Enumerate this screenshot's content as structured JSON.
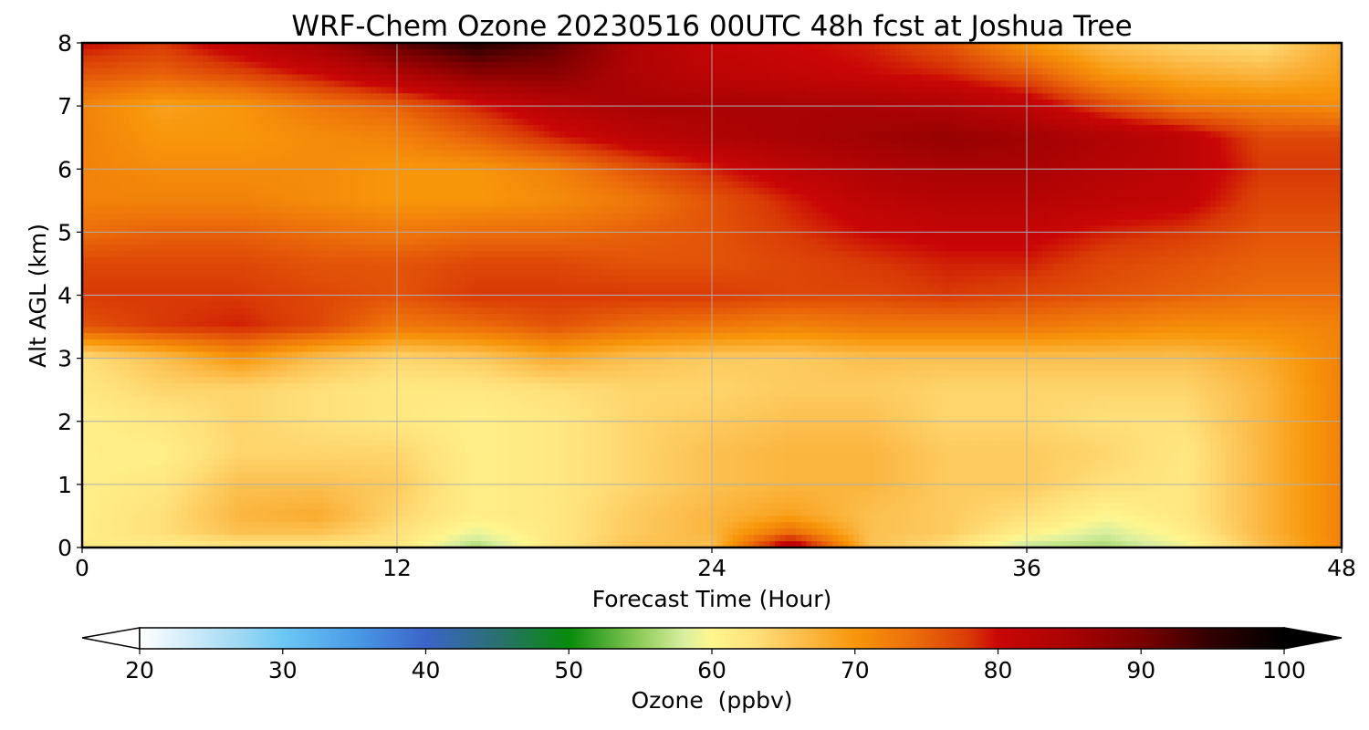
{
  "chart_data": {
    "type": "heatmap",
    "title": "WRF-Chem Ozone  20230516 00UTC 48h fcst at Joshua Tree",
    "xlabel": "Forecast Time (Hour)",
    "ylabel": "Alt AGL (km)",
    "xlim": [
      0,
      48
    ],
    "ylim": [
      0,
      8
    ],
    "x_ticks": [
      "0",
      "12",
      "24",
      "36",
      "48"
    ],
    "y_ticks": [
      "0",
      "1",
      "2",
      "3",
      "4",
      "5",
      "6",
      "7",
      "8"
    ],
    "grid": true,
    "colorbar": {
      "label": "Ozone  (ppbv)",
      "range": [
        20,
        100
      ],
      "ticks": [
        "20",
        "30",
        "40",
        "50",
        "60",
        "70",
        "80",
        "90",
        "100"
      ],
      "extend": "both",
      "stops": [
        {
          "value": 20,
          "color": "#ffffff"
        },
        {
          "value": 27,
          "color": "#9fd8f3"
        },
        {
          "value": 30,
          "color": "#6cc8f5"
        },
        {
          "value": 35,
          "color": "#4a9be6"
        },
        {
          "value": 40,
          "color": "#3b64c8"
        },
        {
          "value": 45,
          "color": "#2a7070"
        },
        {
          "value": 50,
          "color": "#078a0a"
        },
        {
          "value": 55,
          "color": "#8fcc5a"
        },
        {
          "value": 58,
          "color": "#d8efa0"
        },
        {
          "value": 60,
          "color": "#fff68f"
        },
        {
          "value": 63,
          "color": "#ffe07a"
        },
        {
          "value": 66,
          "color": "#fcc050"
        },
        {
          "value": 70,
          "color": "#f8960a"
        },
        {
          "value": 74,
          "color": "#ec6e0a"
        },
        {
          "value": 78,
          "color": "#d93a06"
        },
        {
          "value": 80,
          "color": "#c90606"
        },
        {
          "value": 85,
          "color": "#a90303"
        },
        {
          "value": 90,
          "color": "#7a0000"
        },
        {
          "value": 95,
          "color": "#300000"
        },
        {
          "value": 100,
          "color": "#000000"
        }
      ]
    },
    "times_hr": [
      0,
      3,
      6,
      9,
      12,
      15,
      18,
      21,
      24,
      27,
      30,
      33,
      36,
      39,
      42,
      45,
      48
    ],
    "altitudes_km": [
      0,
      0.25,
      0.5,
      1,
      1.5,
      2,
      2.5,
      3,
      3.5,
      4,
      4.5,
      5,
      5.5,
      6,
      6.5,
      7,
      7.5,
      8
    ],
    "values_ppbv": [
      [
        62,
        61,
        62,
        62,
        62,
        56,
        62,
        66,
        66,
        84,
        66,
        63,
        57,
        56,
        59,
        66,
        72
      ],
      [
        61,
        63,
        66,
        66,
        63,
        59,
        62,
        65,
        67,
        74,
        66,
        65,
        61,
        58,
        61,
        67,
        72
      ],
      [
        61,
        63,
        67,
        68,
        64,
        61,
        62,
        65,
        67,
        69,
        66,
        65,
        63,
        60,
        62,
        67,
        72
      ],
      [
        61,
        62,
        66,
        66,
        65,
        61,
        62,
        64,
        66,
        67,
        67,
        65,
        65,
        63,
        62,
        67,
        72
      ],
      [
        61,
        61,
        64,
        64,
        64,
        61,
        62,
        64,
        66,
        67,
        67,
        65,
        65,
        64,
        62,
        67,
        72
      ],
      [
        61,
        62,
        64,
        63,
        62,
        61,
        62,
        64,
        65,
        66,
        66,
        64,
        64,
        63,
        63,
        67,
        72
      ],
      [
        62,
        64,
        64,
        63,
        62,
        62,
        63,
        64,
        64,
        65,
        65,
        64,
        64,
        64,
        64,
        67,
        72
      ],
      [
        63,
        66,
        70,
        66,
        64,
        65,
        68,
        66,
        65,
        65,
        66,
        66,
        66,
        66,
        66,
        68,
        72
      ],
      [
        76,
        78,
        79,
        77,
        73,
        74,
        76,
        74,
        73,
        72,
        73,
        73,
        73,
        72,
        71,
        71,
        72
      ],
      [
        78,
        78,
        78,
        77,
        76,
        78,
        78,
        78,
        78,
        77,
        77,
        78,
        77,
        76,
        75,
        74,
        74
      ],
      [
        77,
        77,
        77,
        76,
        76,
        77,
        77,
        76,
        76,
        77,
        78,
        79,
        79,
        77,
        76,
        75,
        75
      ],
      [
        74,
        75,
        75,
        74,
        73,
        74,
        74,
        75,
        76,
        78,
        80,
        81,
        81,
        79,
        78,
        76,
        76
      ],
      [
        72,
        72,
        72,
        71,
        70,
        70,
        71,
        73,
        76,
        79,
        82,
        83,
        83,
        82,
        81,
        77,
        77
      ],
      [
        72,
        71,
        71,
        71,
        70,
        70,
        72,
        76,
        79,
        82,
        84,
        85,
        85,
        83,
        82,
        78,
        78
      ],
      [
        72,
        70,
        70,
        71,
        72,
        75,
        79,
        82,
        84,
        85,
        86,
        87,
        86,
        84,
        82,
        77,
        77
      ],
      [
        72,
        69,
        70,
        73,
        75,
        79,
        83,
        85,
        85,
        85,
        85,
        84,
        82,
        77,
        73,
        72,
        71
      ],
      [
        76,
        75,
        77,
        80,
        84,
        88,
        88,
        84,
        82,
        81,
        80,
        79,
        76,
        70,
        68,
        67,
        69
      ],
      [
        80,
        78,
        82,
        86,
        92,
        96,
        92,
        84,
        81,
        80,
        79,
        76,
        70,
        66,
        64,
        63,
        68
      ]
    ]
  }
}
